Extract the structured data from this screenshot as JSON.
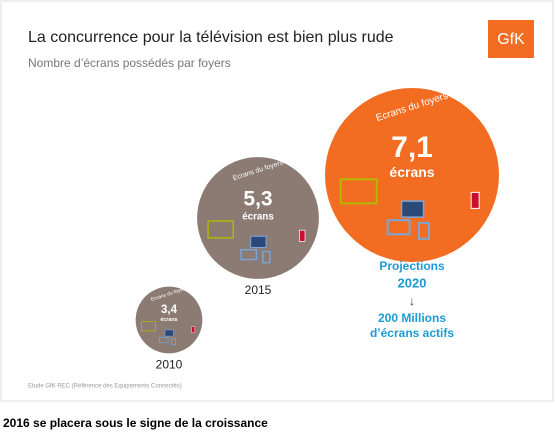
{
  "chart_data": {
    "type": "bubble",
    "title": "La concurrence pour la télévision est bien plus rude",
    "subtitle": "Nombre d’écrans possédés par foyers",
    "logo": "GfK",
    "bubble_label": "Ecrans du foyers",
    "unit": "écrans",
    "categories": [
      "2010",
      "2015",
      "2020"
    ],
    "values": [
      3.4,
      5.3,
      7.1
    ],
    "value_labels": [
      "3,4",
      "5,3",
      "7,1"
    ],
    "colors": [
      "#8b7b72",
      "#8b7b72",
      "#f26c21"
    ],
    "annotation": {
      "title": "Projections",
      "arrow": "↓",
      "lines": [
        "200 Millions",
        "d’écrans actifs"
      ]
    },
    "source": "Etude GfK REC (Référence des Equipements Connectés)",
    "caption": "2016 se placera sous le signe de la croissance"
  }
}
